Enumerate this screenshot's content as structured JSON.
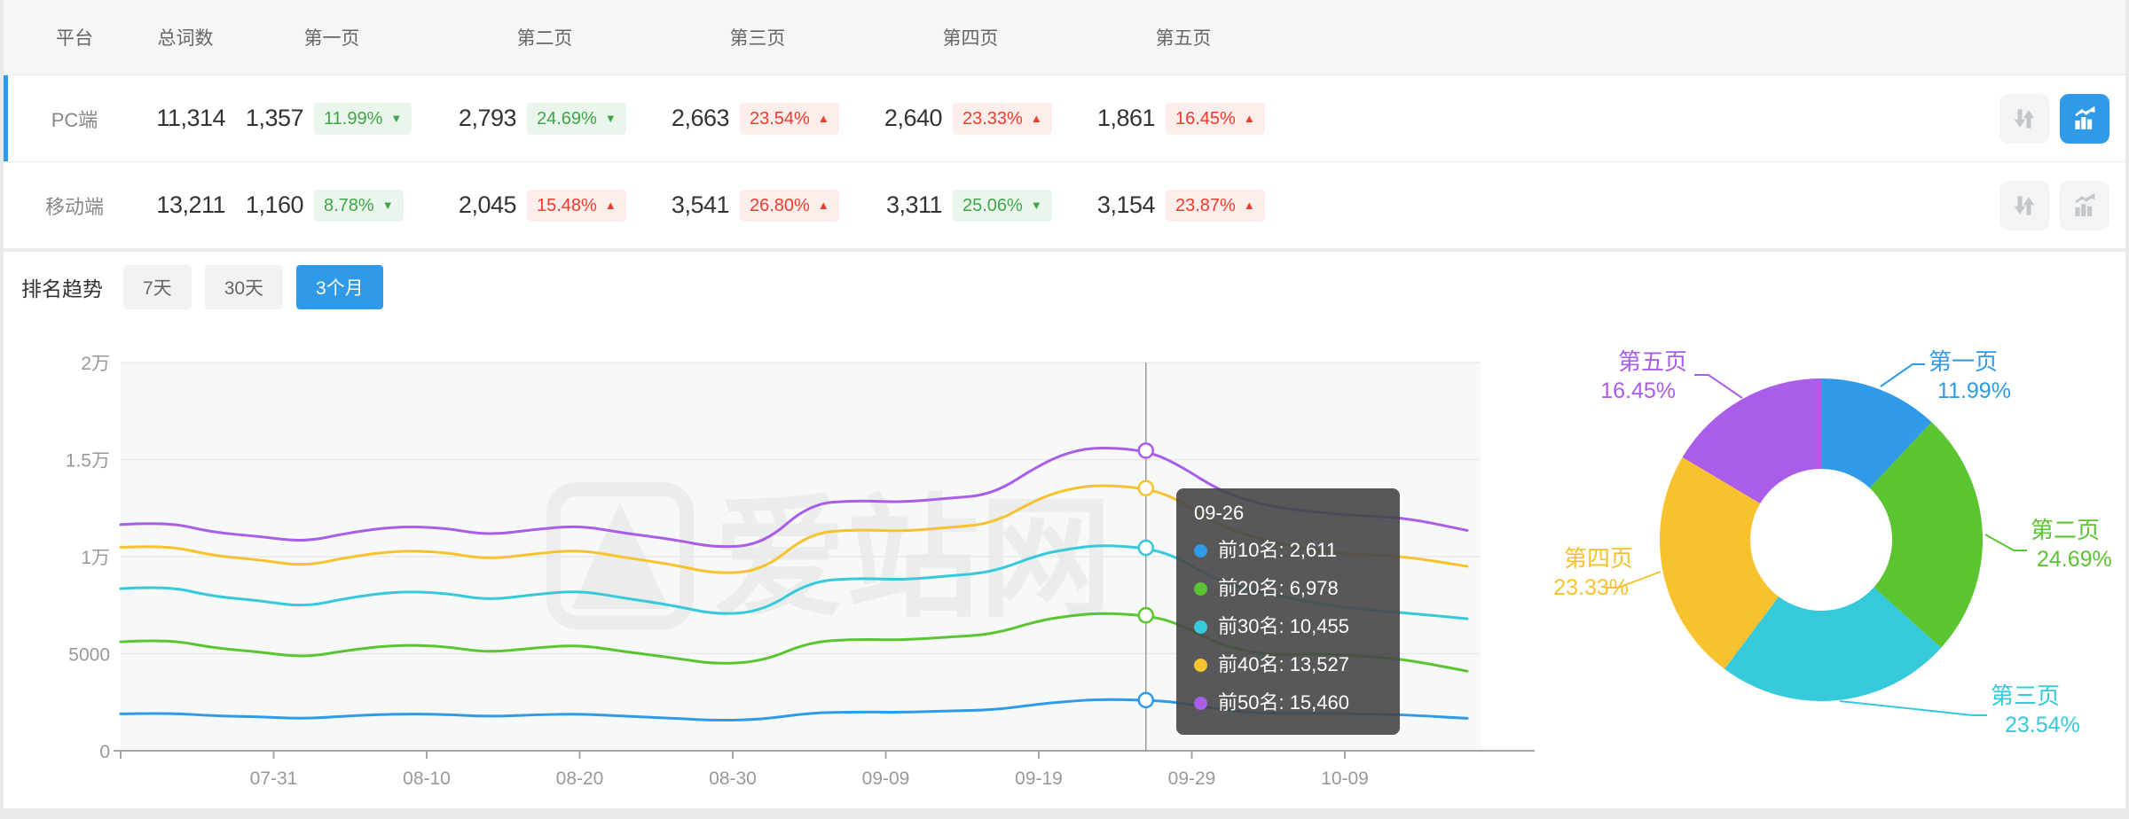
{
  "accent_color": "#2F9BE8",
  "watermark": "爱站网",
  "table": {
    "headers": [
      "平台",
      "总词数",
      "第一页",
      "第二页",
      "第三页",
      "第四页",
      "第五页"
    ],
    "rows": [
      {
        "platform": "PC端",
        "total": "11,314",
        "selected": true,
        "compare_active": false,
        "chart_active": true,
        "pages": [
          {
            "count": "1,357",
            "pct": "11.99%",
            "direction": "down"
          },
          {
            "count": "2,793",
            "pct": "24.69%",
            "direction": "down"
          },
          {
            "count": "2,663",
            "pct": "23.54%",
            "direction": "up"
          },
          {
            "count": "2,640",
            "pct": "23.33%",
            "direction": "up"
          },
          {
            "count": "1,861",
            "pct": "16.45%",
            "direction": "up"
          }
        ]
      },
      {
        "platform": "移动端",
        "total": "13,211",
        "selected": false,
        "compare_active": false,
        "chart_active": false,
        "pages": [
          {
            "count": "1,160",
            "pct": "8.78%",
            "direction": "down"
          },
          {
            "count": "2,045",
            "pct": "15.48%",
            "direction": "up"
          },
          {
            "count": "3,541",
            "pct": "26.80%",
            "direction": "up"
          },
          {
            "count": "3,311",
            "pct": "25.06%",
            "direction": "down"
          },
          {
            "count": "3,154",
            "pct": "23.87%",
            "direction": "up"
          }
        ]
      }
    ],
    "icons": {
      "compare": "sort-arrows-icon",
      "trend": "trend-chart-icon"
    }
  },
  "trend_panel": {
    "title": "排名趋势",
    "range_tabs": [
      {
        "label": "7天",
        "active": false
      },
      {
        "label": "30天",
        "active": false
      },
      {
        "label": "3个月",
        "active": true
      }
    ]
  },
  "chart_data": [
    {
      "type": "line",
      "title": "排名趋势",
      "ylim": [
        0,
        20000
      ],
      "grid": true,
      "y_ticks": [
        {
          "label": "0",
          "value": 0
        },
        {
          "label": "5000",
          "value": 5000
        },
        {
          "label": "1万",
          "value": 10000
        },
        {
          "label": "1.5万",
          "value": 15000
        },
        {
          "label": "2万",
          "value": 20000
        }
      ],
      "x_ticks": [
        {
          "label": "07-31",
          "day": 10
        },
        {
          "label": "08-10",
          "day": 20
        },
        {
          "label": "08-20",
          "day": 30
        },
        {
          "label": "08-30",
          "day": 40
        },
        {
          "label": "09-09",
          "day": 50
        },
        {
          "label": "09-19",
          "day": 60
        },
        {
          "label": "09-29",
          "day": 70
        },
        {
          "label": "10-09",
          "day": 80
        }
      ],
      "day_offsets": [
        0,
        3,
        6,
        9,
        12,
        15,
        18,
        21,
        24,
        27,
        30,
        33,
        36,
        39,
        42,
        45,
        48,
        51,
        54,
        57,
        60,
        62,
        64,
        67,
        69,
        72,
        75,
        78,
        81,
        84,
        88
      ],
      "series": [
        {
          "name": "前10名",
          "color": "#2F9BE8",
          "values": [
            1900,
            1950,
            1800,
            1750,
            1650,
            1800,
            1900,
            1880,
            1760,
            1850,
            1900,
            1780,
            1680,
            1550,
            1620,
            1950,
            2000,
            1980,
            2050,
            2100,
            2400,
            2550,
            2650,
            2611,
            2500,
            2100,
            1900,
            1950,
            1900,
            1850,
            1670
          ]
        },
        {
          "name": "前20名",
          "color": "#5BC431",
          "values": [
            5610,
            5750,
            5300,
            5100,
            4800,
            5200,
            5450,
            5400,
            5050,
            5300,
            5450,
            5100,
            4800,
            4450,
            4620,
            5600,
            5750,
            5700,
            5850,
            6000,
            6700,
            6950,
            7100,
            6978,
            6600,
            5400,
            4900,
            5000,
            4900,
            4700,
            4100
          ]
        },
        {
          "name": "前30名",
          "color": "#36C9DB",
          "values": [
            8350,
            8500,
            7950,
            7750,
            7400,
            7900,
            8200,
            8150,
            7750,
            8050,
            8250,
            7850,
            7500,
            7000,
            7200,
            8700,
            8900,
            8800,
            9000,
            9200,
            10100,
            10400,
            10600,
            10455,
            10000,
            8600,
            8100,
            7600,
            7300,
            7100,
            6800
          ]
        },
        {
          "name": "前40名",
          "color": "#F8C22E",
          "values": [
            10480,
            10600,
            10050,
            9850,
            9500,
            10000,
            10300,
            10250,
            9850,
            10150,
            10350,
            9950,
            9600,
            9100,
            9300,
            11200,
            11400,
            11300,
            11500,
            11700,
            13000,
            13500,
            13700,
            13527,
            13000,
            11500,
            10800,
            10300,
            10100,
            10000,
            9500
          ]
        },
        {
          "name": "前50名",
          "color": "#A95DE8",
          "values": [
            11650,
            11800,
            11250,
            11050,
            10750,
            11250,
            11550,
            11500,
            11100,
            11400,
            11600,
            11200,
            10900,
            10450,
            10650,
            12700,
            12900,
            12800,
            13000,
            13200,
            14700,
            15400,
            15650,
            15460,
            14800,
            13300,
            12600,
            12300,
            12100,
            12000,
            11350
          ]
        }
      ],
      "crosshair_index": 23,
      "crosshair_day": 67,
      "tooltip": {
        "date": "09-26",
        "items": [
          {
            "text": "前10名: 2,611"
          },
          {
            "text": "前20名: 6,978"
          },
          {
            "text": "前30名: 10,455"
          },
          {
            "text": "前40名: 13,527"
          },
          {
            "text": "前50名: 15,460"
          }
        ]
      }
    },
    {
      "type": "pie",
      "labels": [
        "第一页",
        "第二页",
        "第三页",
        "第四页",
        "第五页"
      ],
      "values": [
        11.99,
        24.69,
        23.54,
        23.33,
        16.45
      ],
      "pct_labels": [
        "11.99%",
        "24.69%",
        "23.54%",
        "23.33%",
        "16.45%"
      ],
      "colors": [
        "#2F9BE8",
        "#5BC431",
        "#36C9DB",
        "#F8C22E",
        "#A95DE8"
      ],
      "legend_position": "outside-callout"
    }
  ]
}
